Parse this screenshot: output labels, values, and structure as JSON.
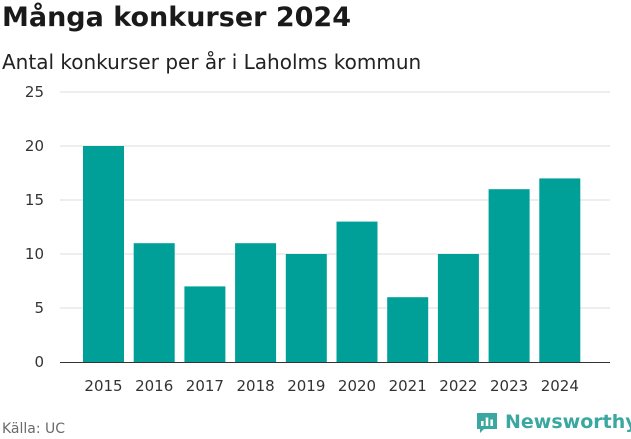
{
  "title": "Många konkurser 2024",
  "subtitle": "Antal konkurser per år i Laholms kommun",
  "source": "Källa: UC",
  "logo": {
    "text": "Newsworthy",
    "icon": "newsworthy-logo-icon",
    "color": "#3aa7a0"
  },
  "colors": {
    "bar": "#00a099",
    "grid": "#dddddd",
    "axis": "#333333"
  },
  "chart_data": {
    "type": "bar",
    "title": "Många konkurser 2024",
    "subtitle": "Antal konkurser per år i Laholms kommun",
    "xlabel": "",
    "ylabel": "",
    "categories": [
      "2015",
      "2016",
      "2017",
      "2018",
      "2019",
      "2020",
      "2021",
      "2022",
      "2023",
      "2024"
    ],
    "values": [
      20,
      11,
      7,
      11,
      10,
      13,
      6,
      10,
      16,
      17
    ],
    "ylim": [
      0,
      25
    ],
    "yticks": [
      0,
      5,
      10,
      15,
      20,
      25
    ],
    "grid": true,
    "legend": "none"
  }
}
